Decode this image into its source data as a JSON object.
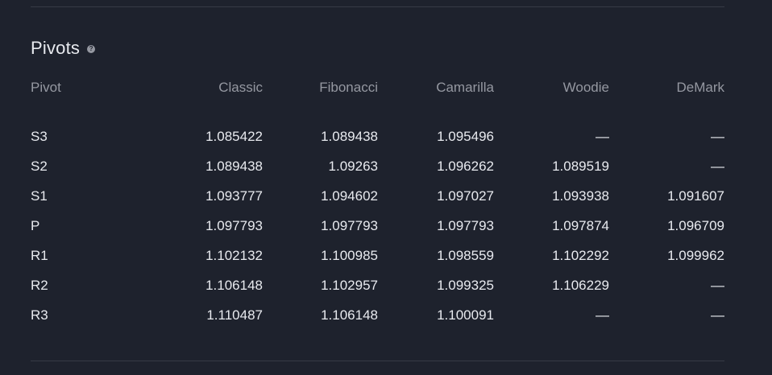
{
  "section": {
    "title": "Pivots",
    "help_icon": "question-circle-icon"
  },
  "table": {
    "headers": [
      "Pivot",
      "Classic",
      "Fibonacci",
      "Camarilla",
      "Woodie",
      "DeMark"
    ],
    "rows": [
      {
        "label": "S3",
        "values": [
          "1.085422",
          "1.089438",
          "1.095496",
          "—",
          "—"
        ]
      },
      {
        "label": "S2",
        "values": [
          "1.089438",
          "1.09263",
          "1.096262",
          "1.089519",
          "—"
        ]
      },
      {
        "label": "S1",
        "values": [
          "1.093777",
          "1.094602",
          "1.097027",
          "1.093938",
          "1.091607"
        ]
      },
      {
        "label": "P",
        "values": [
          "1.097793",
          "1.097793",
          "1.097793",
          "1.097874",
          "1.096709"
        ]
      },
      {
        "label": "R1",
        "values": [
          "1.102132",
          "1.100985",
          "1.098559",
          "1.102292",
          "1.099962"
        ]
      },
      {
        "label": "R2",
        "values": [
          "1.106148",
          "1.102957",
          "1.099325",
          "1.106229",
          "—"
        ]
      },
      {
        "label": "R3",
        "values": [
          "1.110487",
          "1.106148",
          "1.100091",
          "—",
          "—"
        ]
      }
    ]
  },
  "colors": {
    "background": "#1e222d",
    "divider": "#363a45",
    "header_text": "#9598a1",
    "value_text": "#e8eaef"
  }
}
